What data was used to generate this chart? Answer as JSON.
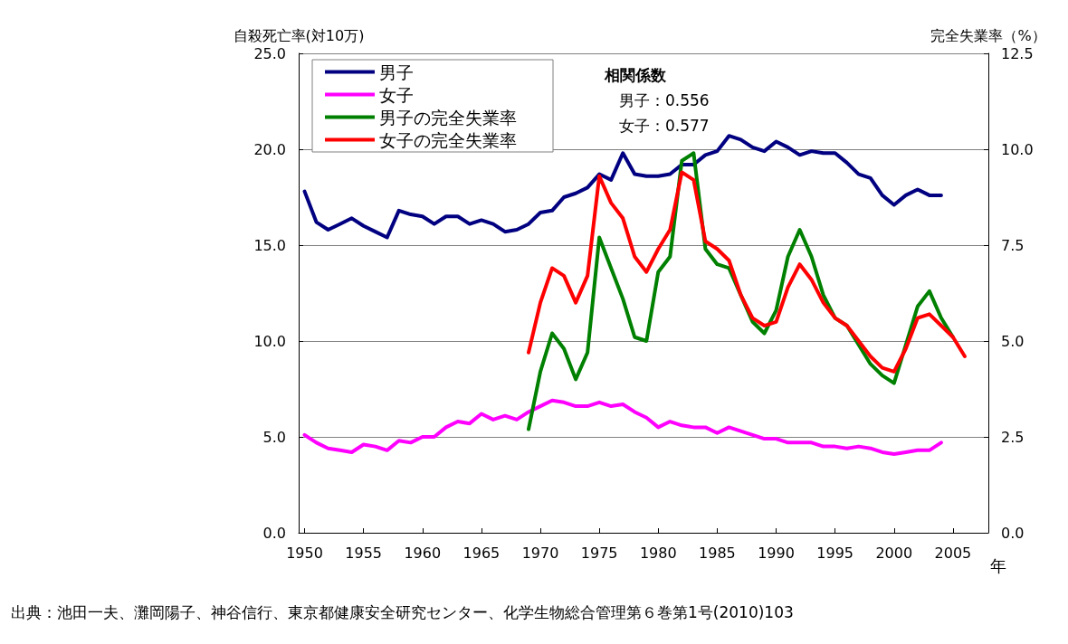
{
  "chart_data": {
    "type": "line",
    "ylabel": "自殺死亡率(対10万)",
    "y2label": "完全失業率（%）",
    "xlabel": "年",
    "annotations": [
      "相関係数",
      "男子：0.556",
      "女子：0.577",
      "出典：池田一夫、灘岡陽子、神谷信行、東京都健康安全研究センター、化学生物総合管理第６巻第1号(2010)103"
    ],
    "xlim": [
      1949.5,
      2008
    ],
    "xticks": [
      1950,
      1955,
      1960,
      1965,
      1970,
      1975,
      1980,
      1985,
      1990,
      1995,
      2000,
      2005
    ],
    "ylim": [
      0,
      25
    ],
    "yticks": [
      {
        "value": 0,
        "label": "0.0"
      },
      {
        "value": 5,
        "label": "5.0"
      },
      {
        "value": 10,
        "label": "10.0"
      },
      {
        "value": 15,
        "label": "15.0"
      },
      {
        "value": 20,
        "label": "20.0"
      },
      {
        "value": 25,
        "label": "25.0"
      }
    ],
    "y2lim": [
      0,
      12.5
    ],
    "y2ticks": [
      {
        "value": 0,
        "label": "0.0"
      },
      {
        "value": 2.5,
        "label": "2.5"
      },
      {
        "value": 5,
        "label": "5.0"
      },
      {
        "value": 7.5,
        "label": "7.5"
      },
      {
        "value": 10,
        "label": "10.0"
      },
      {
        "value": 12.5,
        "label": "12.5"
      }
    ],
    "grid": "y",
    "legend": "top left",
    "marker": "none",
    "line_style": "solid",
    "series": [
      {
        "name": "男子",
        "color": "#000080",
        "x": [
          1950,
          1951,
          1952,
          1953,
          1954,
          1955,
          1956,
          1957,
          1958,
          1959,
          1960,
          1961,
          1962,
          1963,
          1964,
          1965,
          1966,
          1967,
          1968,
          1969,
          1970,
          1971,
          1972,
          1973,
          1974,
          1975,
          1976,
          1977,
          1978,
          1979,
          1980,
          1981,
          1982,
          1983,
          1984,
          1985,
          1986,
          1987,
          1988,
          1989,
          1990,
          1991,
          1992,
          1993,
          1994,
          1995,
          1996,
          1997,
          1998,
          1999,
          2000,
          2001,
          2002,
          2003,
          2004
        ],
        "values": [
          17.8,
          16.2,
          15.8,
          16.1,
          16.4,
          16.0,
          15.7,
          15.4,
          16.8,
          16.6,
          16.5,
          16.1,
          16.5,
          16.5,
          16.1,
          16.3,
          16.1,
          15.7,
          15.8,
          16.1,
          16.7,
          16.8,
          17.5,
          17.7,
          18.0,
          18.7,
          18.4,
          19.8,
          18.7,
          18.6,
          18.6,
          18.7,
          19.2,
          19.2,
          19.7,
          19.9,
          20.7,
          20.5,
          20.1,
          19.9,
          20.4,
          20.1,
          19.7,
          19.9,
          19.8,
          19.8,
          19.3,
          18.7,
          18.5,
          17.6,
          17.1,
          17.6,
          17.9,
          17.6,
          17.6
        ]
      },
      {
        "name": "女子",
        "color": "#ff00ff",
        "x": [
          1950,
          1951,
          1952,
          1953,
          1954,
          1955,
          1956,
          1957,
          1958,
          1959,
          1960,
          1961,
          1962,
          1963,
          1964,
          1965,
          1966,
          1967,
          1968,
          1969,
          1970,
          1971,
          1972,
          1973,
          1974,
          1975,
          1976,
          1977,
          1978,
          1979,
          1980,
          1981,
          1982,
          1983,
          1984,
          1985,
          1986,
          1987,
          1988,
          1989,
          1990,
          1991,
          1992,
          1993,
          1994,
          1995,
          1996,
          1997,
          1998,
          1999,
          2000,
          2001,
          2002,
          2003,
          2004
        ],
        "values": [
          5.1,
          4.7,
          4.4,
          4.3,
          4.2,
          4.6,
          4.5,
          4.3,
          4.8,
          4.7,
          5.0,
          5.0,
          5.5,
          5.8,
          5.7,
          6.2,
          5.9,
          6.1,
          5.9,
          6.3,
          6.6,
          6.9,
          6.8,
          6.6,
          6.6,
          6.8,
          6.6,
          6.7,
          6.3,
          6.0,
          5.5,
          5.8,
          5.6,
          5.5,
          5.5,
          5.2,
          5.5,
          5.3,
          5.1,
          4.9,
          4.9,
          4.7,
          4.7,
          4.7,
          4.5,
          4.5,
          4.4,
          4.5,
          4.4,
          4.2,
          4.1,
          4.2,
          4.3,
          4.3,
          4.7
        ]
      },
      {
        "name": "男子の完全失業率",
        "color": "#008000",
        "axis": "y2",
        "x": [
          1969,
          1970,
          1971,
          1972,
          1973,
          1974,
          1975,
          1976,
          1977,
          1978,
          1979,
          1980,
          1981,
          1982,
          1983,
          1984,
          1985,
          1986,
          1987,
          1988,
          1989,
          1990,
          1991,
          1992,
          1993,
          1994,
          1995,
          1996,
          1997,
          1998,
          1999,
          2000,
          2001,
          2002,
          2003,
          2004,
          2005
        ],
        "values": [
          2.7,
          4.2,
          5.2,
          4.8,
          4.0,
          4.7,
          7.7,
          6.9,
          6.1,
          5.1,
          5.0,
          6.8,
          7.2,
          9.7,
          9.9,
          7.4,
          7.0,
          6.9,
          6.2,
          5.5,
          5.2,
          5.8,
          7.2,
          7.9,
          7.2,
          6.2,
          5.6,
          5.4,
          4.9,
          4.4,
          4.1,
          3.9,
          4.9,
          5.9,
          6.3,
          5.6,
          5.1
        ]
      },
      {
        "name": "女子の完全失業率",
        "color": "#ff0000",
        "axis": "y2",
        "x": [
          1969,
          1970,
          1971,
          1972,
          1973,
          1974,
          1975,
          1976,
          1977,
          1978,
          1979,
          1980,
          1981,
          1982,
          1983,
          1984,
          1985,
          1986,
          1987,
          1988,
          1989,
          1990,
          1991,
          1992,
          1993,
          1994,
          1995,
          1996,
          1997,
          1998,
          1999,
          2000,
          2001,
          2002,
          2003,
          2004,
          2005,
          2006
        ],
        "values": [
          4.7,
          6.0,
          6.9,
          6.7,
          6.0,
          6.7,
          9.3,
          8.6,
          8.2,
          7.2,
          6.8,
          7.4,
          7.9,
          9.4,
          9.2,
          7.6,
          7.4,
          7.1,
          6.2,
          5.6,
          5.4,
          5.5,
          6.4,
          7.0,
          6.6,
          6.0,
          5.6,
          5.4,
          5.0,
          4.6,
          4.3,
          4.2,
          4.8,
          5.6,
          5.7,
          5.4,
          5.1,
          4.6
        ]
      }
    ]
  }
}
